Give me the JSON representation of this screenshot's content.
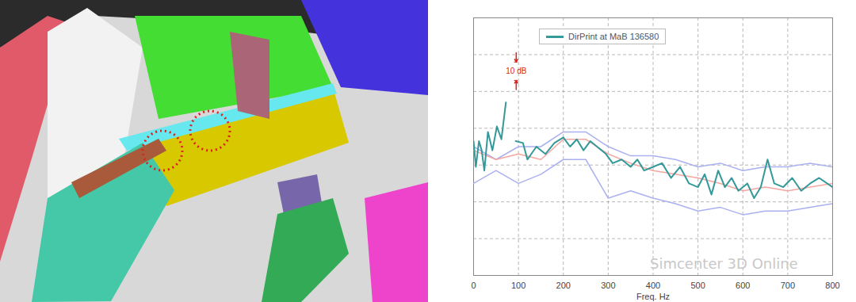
{
  "chart_data": {
    "type": "line",
    "xlabel": "Freq. Hz",
    "xlim": [
      0,
      800
    ],
    "xticks": [
      0,
      100,
      200,
      300,
      400,
      500,
      600,
      700,
      800
    ],
    "ylim": [
      0,
      140
    ],
    "yticks": [
      0,
      20,
      40,
      60,
      80,
      100,
      120,
      140
    ],
    "grid": true,
    "tick_labels": "x",
    "legend": "top",
    "annotation": {
      "text": "10 dB",
      "x": 95,
      "y": [
        106,
        116
      ]
    },
    "watermark": "Simcenter 3D Online",
    "series": [
      {
        "color": "#aab0f0",
        "x": [
          0,
          50,
          100,
          150,
          200,
          250,
          300,
          350,
          400,
          450,
          500,
          550,
          600,
          650,
          700,
          750,
          800
        ],
        "values": [
          70,
          63,
          70,
          70,
          78,
          78,
          70,
          65,
          65,
          63,
          59,
          61,
          57,
          59,
          59,
          61,
          59
        ]
      },
      {
        "color": "#aab0f0",
        "x": [
          0,
          50,
          100,
          150,
          200,
          250,
          300,
          350,
          400,
          450,
          500,
          550,
          600,
          650,
          700,
          750,
          800
        ],
        "values": [
          50,
          57,
          50,
          55,
          63,
          63,
          42,
          46,
          42,
          39,
          35,
          37,
          33,
          35,
          35,
          37,
          39
        ]
      },
      {
        "color": "#f4a6a0",
        "x": [
          0,
          50,
          100,
          150,
          200,
          250,
          300,
          350,
          400,
          450,
          500,
          550,
          600,
          650,
          700,
          750,
          800
        ],
        "values": [
          68,
          63,
          66,
          63,
          74,
          74,
          66,
          61,
          57,
          55,
          53,
          50,
          46,
          48,
          46,
          48,
          50
        ]
      },
      {
        "name": "DirPrint at MaB 136580",
        "color": "#339999",
        "x": [
          0,
          5,
          12,
          18,
          24,
          32,
          42,
          52,
          62,
          72,
          82,
          94,
          110,
          120,
          140,
          160,
          180,
          200,
          215,
          230,
          245,
          260,
          275,
          295,
          310,
          330,
          350,
          365,
          380,
          400,
          420,
          440,
          460,
          480,
          500,
          515,
          530,
          545,
          560,
          575,
          590,
          610,
          625,
          640,
          655,
          670,
          690,
          710,
          730,
          750,
          770,
          800
        ],
        "values": [
          73,
          59,
          73,
          68,
          57,
          78,
          68,
          81,
          74,
          94,
          null,
          73,
          72,
          63,
          70,
          66,
          72,
          75,
          70,
          74,
          68,
          73,
          70,
          66,
          61,
          63,
          59,
          63,
          57,
          59,
          61,
          53,
          59,
          50,
          48,
          55,
          44,
          57,
          48,
          53,
          46,
          50,
          42,
          48,
          63,
          50,
          48,
          53,
          46,
          50,
          53,
          48
        ]
      }
    ]
  }
}
